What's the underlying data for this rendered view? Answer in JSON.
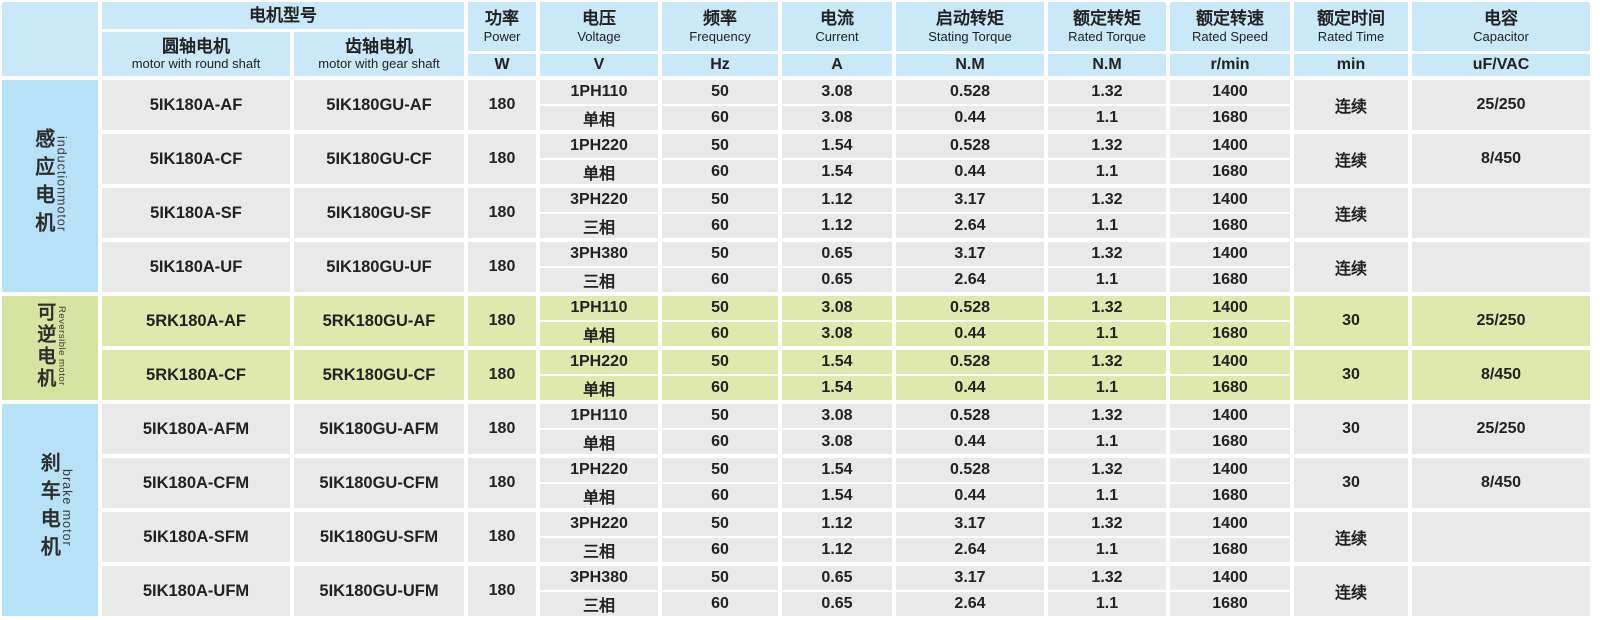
{
  "colors": {
    "header_blue": "#c9e8f8",
    "label_blue": "#b6e1f6",
    "label_green": "#d7e4a1",
    "cell_gray": "#e9e9e9",
    "cell_green": "#dfe9ae",
    "border_white": "#ffffff",
    "text": "#222222"
  },
  "table": {
    "header": {
      "model_group": {
        "zh": "电机型号"
      },
      "round_shaft": {
        "zh": "圆轴电机",
        "en": "motor with round shaft"
      },
      "gear_shaft": {
        "zh": "齿轴电机",
        "en": "motor with gear shaft"
      },
      "columns": [
        {
          "zh": "功率",
          "en": "Power",
          "unit": "W"
        },
        {
          "zh": "电压",
          "en": "Voltage",
          "unit": "V"
        },
        {
          "zh": "频率",
          "en": "Frequency",
          "unit": "Hz"
        },
        {
          "zh": "电流",
          "en": "Current",
          "unit": "A"
        },
        {
          "zh": "启动转矩",
          "en": "Stating Torque",
          "unit": "N.M"
        },
        {
          "zh": "额定转矩",
          "en": "Rated Torque",
          "unit": "N.M"
        },
        {
          "zh": "额定转速",
          "en": "Rated Speed",
          "unit": "r/min"
        },
        {
          "zh": "额定时间",
          "en": "Rated Time",
          "unit": "min"
        },
        {
          "zh": "电容",
          "en": "Capacitor",
          "unit": "uF/VAC"
        }
      ]
    },
    "groups": [
      {
        "zh": "感应电机",
        "en": "inductionmotor",
        "theme": "blue",
        "rows": [
          {
            "round": "5IK180A-AF",
            "gear": "5IK180GU-AF",
            "power": "180",
            "voltage": [
              "1PH110",
              "单相"
            ],
            "sub": [
              {
                "freq": "50",
                "current": "3.08",
                "start_torque": "0.528",
                "rated_torque": "1.32",
                "speed": "1400"
              },
              {
                "freq": "60",
                "current": "3.08",
                "start_torque": "0.44",
                "rated_torque": "1.1",
                "speed": "1680"
              }
            ],
            "rated_time": "连续",
            "capacitor": "25/250"
          },
          {
            "round": "5IK180A-CF",
            "gear": "5IK180GU-CF",
            "power": "180",
            "voltage": [
              "1PH220",
              "单相"
            ],
            "sub": [
              {
                "freq": "50",
                "current": "1.54",
                "start_torque": "0.528",
                "rated_torque": "1.32",
                "speed": "1400"
              },
              {
                "freq": "60",
                "current": "1.54",
                "start_torque": "0.44",
                "rated_torque": "1.1",
                "speed": "1680"
              }
            ],
            "rated_time": "连续",
            "capacitor": "8/450"
          },
          {
            "round": "5IK180A-SF",
            "gear": "5IK180GU-SF",
            "power": "180",
            "voltage": [
              "3PH220",
              "三相"
            ],
            "sub": [
              {
                "freq": "50",
                "current": "1.12",
                "start_torque": "3.17",
                "rated_torque": "1.32",
                "speed": "1400"
              },
              {
                "freq": "60",
                "current": "1.12",
                "start_torque": "2.64",
                "rated_torque": "1.1",
                "speed": "1680"
              }
            ],
            "rated_time": "连续",
            "capacitor": ""
          },
          {
            "round": "5IK180A-UF",
            "gear": "5IK180GU-UF",
            "power": "180",
            "voltage": [
              "3PH380",
              "三相"
            ],
            "sub": [
              {
                "freq": "50",
                "current": "0.65",
                "start_torque": "3.17",
                "rated_torque": "1.32",
                "speed": "1400"
              },
              {
                "freq": "60",
                "current": "0.65",
                "start_torque": "2.64",
                "rated_torque": "1.1",
                "speed": "1680"
              }
            ],
            "rated_time": "连续",
            "capacitor": ""
          }
        ]
      },
      {
        "zh": "可逆电机",
        "en": "Reversible motor",
        "theme": "green",
        "rows": [
          {
            "round": "5RK180A-AF",
            "gear": "5RK180GU-AF",
            "power": "180",
            "voltage": [
              "1PH110",
              "单相"
            ],
            "sub": [
              {
                "freq": "50",
                "current": "3.08",
                "start_torque": "0.528",
                "rated_torque": "1.32",
                "speed": "1400"
              },
              {
                "freq": "60",
                "current": "3.08",
                "start_torque": "0.44",
                "rated_torque": "1.1",
                "speed": "1680"
              }
            ],
            "rated_time": "30",
            "capacitor": "25/250"
          },
          {
            "round": "5RK180A-CF",
            "gear": "5RK180GU-CF",
            "power": "180",
            "voltage": [
              "1PH220",
              "单相"
            ],
            "sub": [
              {
                "freq": "50",
                "current": "1.54",
                "start_torque": "0.528",
                "rated_torque": "1.32",
                "speed": "1400"
              },
              {
                "freq": "60",
                "current": "1.54",
                "start_torque": "0.44",
                "rated_torque": "1.1",
                "speed": "1680"
              }
            ],
            "rated_time": "30",
            "capacitor": "8/450"
          }
        ]
      },
      {
        "zh": "刹车电机",
        "en": "brake motor",
        "theme": "blue",
        "rows": [
          {
            "round": "5IK180A-AFM",
            "gear": "5IK180GU-AFM",
            "power": "180",
            "voltage": [
              "1PH110",
              "单相"
            ],
            "sub": [
              {
                "freq": "50",
                "current": "3.08",
                "start_torque": "0.528",
                "rated_torque": "1.32",
                "speed": "1400"
              },
              {
                "freq": "60",
                "current": "3.08",
                "start_torque": "0.44",
                "rated_torque": "1.1",
                "speed": "1680"
              }
            ],
            "rated_time": "30",
            "capacitor": "25/250"
          },
          {
            "round": "5IK180A-CFM",
            "gear": "5IK180GU-CFM",
            "power": "180",
            "voltage": [
              "1PH220",
              "单相"
            ],
            "sub": [
              {
                "freq": "50",
                "current": "1.54",
                "start_torque": "0.528",
                "rated_torque": "1.32",
                "speed": "1400"
              },
              {
                "freq": "60",
                "current": "1.54",
                "start_torque": "0.44",
                "rated_torque": "1.1",
                "speed": "1680"
              }
            ],
            "rated_time": "30",
            "capacitor": "8/450"
          },
          {
            "round": "5IK180A-SFM",
            "gear": "5IK180GU-SFM",
            "power": "180",
            "voltage": [
              "3PH220",
              "三相"
            ],
            "sub": [
              {
                "freq": "50",
                "current": "1.12",
                "start_torque": "3.17",
                "rated_torque": "1.32",
                "speed": "1400"
              },
              {
                "freq": "60",
                "current": "1.12",
                "start_torque": "2.64",
                "rated_torque": "1.1",
                "speed": "1680"
              }
            ],
            "rated_time": "连续",
            "capacitor": ""
          },
          {
            "round": "5IK180A-UFM",
            "gear": "5IK180GU-UFM",
            "power": "180",
            "voltage": [
              "3PH380",
              "三相"
            ],
            "sub": [
              {
                "freq": "50",
                "current": "0.65",
                "start_torque": "3.17",
                "rated_torque": "1.32",
                "speed": "1400"
              },
              {
                "freq": "60",
                "current": "0.65",
                "start_torque": "2.64",
                "rated_torque": "1.1",
                "speed": "1680"
              }
            ],
            "rated_time": "连续",
            "capacitor": ""
          }
        ]
      }
    ]
  }
}
